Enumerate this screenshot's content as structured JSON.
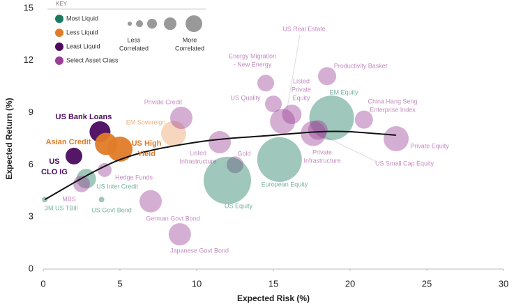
{
  "chart_data": {
    "type": "bubble",
    "x_label": "Expected Risk (%)",
    "y_label": "Expected Return (%)",
    "xlim": [
      0,
      30
    ],
    "xticks": [
      0,
      5,
      10,
      15,
      20,
      25,
      30
    ],
    "ylim": [
      0,
      15
    ],
    "yticks": [
      0,
      3,
      6,
      9,
      12,
      15
    ],
    "legend": {
      "title": "KEY",
      "groups": [
        {
          "name": "Most Liquid",
          "color": "#1a7a5e"
        },
        {
          "name": "Less Liquid",
          "color": "#e07b28"
        },
        {
          "name": "Least Liquid",
          "color": "#4b0a5e"
        },
        {
          "name": "Select Asset Class",
          "color": "#9b3d96"
        }
      ],
      "size_low": [
        "Less",
        "Correlated"
      ],
      "size_high": [
        "More",
        "Correlated"
      ]
    },
    "curve": {
      "color": "#111111",
      "x": [
        0.1,
        5,
        10,
        15,
        18,
        20,
        23
      ],
      "y": [
        4.0,
        6.3,
        7.3,
        7.7,
        7.9,
        7.9,
        7.7
      ]
    },
    "points": [
      {
        "name": [
          "3M US TBill"
        ],
        "x": 0.1,
        "y": 4.0,
        "size": 4,
        "group": 0,
        "bold": false
      },
      {
        "name": [
          "US Govt Bond"
        ],
        "x": 3.8,
        "y": 4.0,
        "size": 4,
        "group": 0,
        "bold": false
      },
      {
        "name": [
          "US Inter Credit"
        ],
        "x": 2.8,
        "y": 5.2,
        "size": 14,
        "group": 0,
        "bold": false
      },
      {
        "name": [
          "MBS"
        ],
        "x": 2.5,
        "y": 4.9,
        "size": 12,
        "group": 3,
        "bold": false
      },
      {
        "name": [
          "Hedge Funds"
        ],
        "x": 4.0,
        "y": 5.7,
        "size": 10,
        "group": 3,
        "bold": false
      },
      {
        "name": [
          "US",
          "CLO IG"
        ],
        "x": 2.0,
        "y": 6.5,
        "size": 12,
        "group": 2,
        "bold": true
      },
      {
        "name": [
          "US Bank Loans"
        ],
        "x": 3.7,
        "y": 7.9,
        "size": 15,
        "group": 2,
        "bold": true
      },
      {
        "name": [
          "Asian Credit"
        ],
        "x": 4.1,
        "y": 7.2,
        "size": 16,
        "group": 1,
        "bold": true
      },
      {
        "name": [
          "US High",
          "Yield"
        ],
        "x": 5.0,
        "y": 6.9,
        "size": 18,
        "group": 1,
        "bold": true
      },
      {
        "name": [
          "EM Sovereign"
        ],
        "x": 8.5,
        "y": 7.8,
        "size": 18,
        "group": 1,
        "bold": false
      },
      {
        "name": [
          "Private Credit"
        ],
        "x": 9.0,
        "y": 8.7,
        "size": 16,
        "group": 3,
        "bold": false
      },
      {
        "name": [
          "German Govt Bond"
        ],
        "x": 7.0,
        "y": 3.9,
        "size": 16,
        "group": 3,
        "bold": false
      },
      {
        "name": [
          "Japanese Govt Bond"
        ],
        "x": 8.9,
        "y": 2.0,
        "size": 16,
        "group": 3,
        "bold": false
      },
      {
        "name": [
          "Listed",
          "Infrastructure"
        ],
        "x": 11.5,
        "y": 7.3,
        "size": 16,
        "group": 3,
        "bold": false
      },
      {
        "name": [
          "Gold"
        ],
        "x": 12.5,
        "y": 6.0,
        "size": 12,
        "group": 3,
        "bold": false
      },
      {
        "name": [
          "US Equity"
        ],
        "x": 12.0,
        "y": 5.1,
        "size": 34,
        "group": 0,
        "bold": false
      },
      {
        "name": [
          "European Equity"
        ],
        "x": 15.4,
        "y": 6.3,
        "size": 32,
        "group": 0,
        "bold": false
      },
      {
        "name": [
          "Energy Migration",
          "- New Energy"
        ],
        "x": 14.5,
        "y": 10.7,
        "size": 12,
        "group": 3,
        "bold": false
      },
      {
        "name": [
          "US Quality"
        ],
        "x": 15.0,
        "y": 9.5,
        "size": 12,
        "group": 3,
        "bold": false
      },
      {
        "name": [
          "US Real Estate"
        ],
        "x": 15.6,
        "y": 8.5,
        "size": 18,
        "group": 3,
        "bold": false
      },
      {
        "name": [
          "Listed",
          "Private",
          "Equity"
        ],
        "x": 16.2,
        "y": 8.9,
        "size": 14,
        "group": 3,
        "bold": false
      },
      {
        "name": [
          "EM Equity"
        ],
        "x": 18.8,
        "y": 8.7,
        "size": 32,
        "group": 0,
        "bold": false
      },
      {
        "name": [
          "Productivity Basket"
        ],
        "x": 18.5,
        "y": 11.1,
        "size": 13,
        "group": 3,
        "bold": false
      },
      {
        "name": [
          "China Hang Seng",
          "Enterprise Index"
        ],
        "x": 20.9,
        "y": 8.6,
        "size": 13,
        "group": 3,
        "bold": false
      },
      {
        "name": [
          "Private Equity"
        ],
        "x": 23.0,
        "y": 7.5,
        "size": 18,
        "group": 3,
        "bold": false
      },
      {
        "name": [
          "Private",
          "Infrastructure"
        ],
        "x": 17.6,
        "y": 7.8,
        "size": 18,
        "group": 3,
        "bold": false
      },
      {
        "name": [
          "US Small Cap Equity"
        ],
        "x": 17.9,
        "y": 8.0,
        "size": 14,
        "group": 3,
        "bold": false
      }
    ]
  }
}
